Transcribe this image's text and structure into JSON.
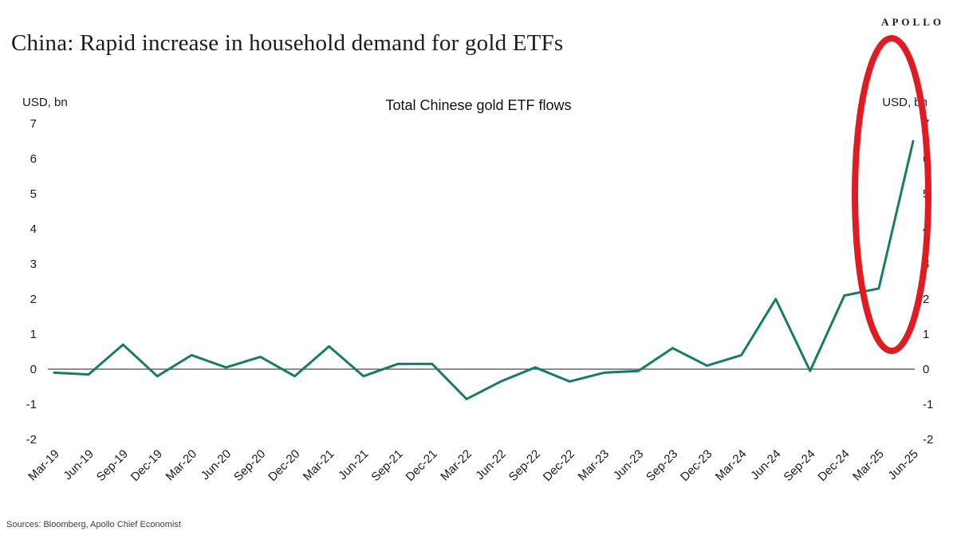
{
  "logo": "APOLLO",
  "title": "China: Rapid increase in household demand for gold ETFs",
  "source": "Sources: Bloomberg, Apollo Chief Economist",
  "chart_data": {
    "type": "line",
    "title": "Total Chinese gold ETF flows",
    "ylabel_left": "USD, bn",
    "ylabel_right": "USD, bn",
    "categories": [
      "Mar-19",
      "Jun-19",
      "Sep-19",
      "Dec-19",
      "Mar-20",
      "Jun-20",
      "Sep-20",
      "Dec-20",
      "Mar-21",
      "Jun-21",
      "Sep-21",
      "Dec-21",
      "Mar-22",
      "Jun-22",
      "Sep-22",
      "Dec-22",
      "Mar-23",
      "Jun-23",
      "Sep-23",
      "Dec-23",
      "Mar-24",
      "Jun-24",
      "Sep-24",
      "Dec-24",
      "Mar-25",
      "Jun-25"
    ],
    "values": [
      -0.1,
      -0.15,
      0.7,
      -0.2,
      0.4,
      0.05,
      0.35,
      -0.2,
      0.65,
      -0.2,
      0.15,
      0.15,
      -0.85,
      -0.35,
      0.05,
      -0.35,
      -0.1,
      -0.05,
      0.6,
      0.1,
      0.4,
      2.0,
      -0.05,
      2.1,
      2.3,
      6.5
    ],
    "ylim": [
      -2,
      7
    ],
    "ytick_step": 1,
    "grid": false,
    "legend": "none",
    "line_color": "#177c66",
    "zero_line_color": "#4a4a4a",
    "annotation": {
      "type": "ellipse",
      "color": "#e01b22",
      "highlights": "Mar-25 to Jun-25 surge"
    }
  }
}
